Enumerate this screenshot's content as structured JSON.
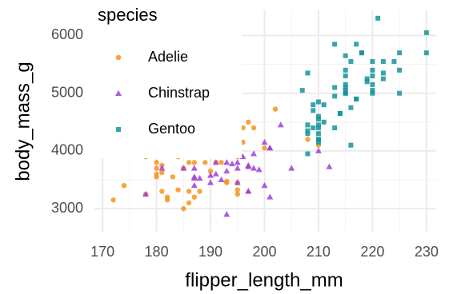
{
  "chart_data": {
    "type": "scatter",
    "xlabel": "flipper_length_mm",
    "ylabel": "body_mass_g",
    "legend_title": "species",
    "xlim": [
      168.5,
      231.8
    ],
    "ylim": [
      2600,
      6450
    ],
    "xticks": [
      170,
      180,
      190,
      200,
      210,
      220,
      230
    ],
    "yticks": [
      3000,
      4000,
      5000,
      6000
    ],
    "grid": true,
    "legend": "upper left",
    "series": [
      {
        "name": "Adelie",
        "color": "#f7931e",
        "shape": "circle",
        "x": [
          181,
          186,
          195,
          193,
          190,
          181,
          195,
          193,
          190,
          186,
          180,
          182,
          191,
          198,
          185,
          195,
          197,
          184,
          194,
          174,
          180,
          189,
          185,
          180,
          187,
          183,
          187,
          172,
          180,
          178,
          178,
          188,
          184,
          195,
          196,
          190,
          180,
          181,
          184,
          182,
          195,
          186,
          196,
          185,
          190,
          208,
          210,
          192,
          200,
          202
        ],
        "values": [
          3750,
          3800,
          3250,
          3450,
          3650,
          3625,
          4675,
          3475,
          4250,
          3300,
          3700,
          3200,
          3800,
          4400,
          3700,
          3450,
          4500,
          3325,
          4200,
          3400,
          3600,
          3800,
          3950,
          3800,
          3800,
          3550,
          3200,
          3150,
          3950,
          3250,
          3900,
          3300,
          3900,
          3325,
          4150,
          3950,
          3550,
          3300,
          4650,
          3150,
          3900,
          3100,
          4400,
          3000,
          4600,
          4200,
          4100,
          3800,
          4050,
          4725
        ]
      },
      {
        "name": "Chinstrap",
        "color": "#a13fd6",
        "shape": "triangle",
        "x": [
          192,
          196,
          193,
          188,
          197,
          198,
          178,
          197,
          195,
          198,
          193,
          194,
          185,
          201,
          190,
          201,
          197,
          181,
          190,
          195,
          191,
          187,
          193,
          195,
          197,
          200,
          200,
          191,
          205,
          187,
          201,
          187,
          203,
          195,
          199,
          195,
          210,
          192,
          212,
          187
        ],
        "values": [
          3500,
          3900,
          3650,
          3525,
          3725,
          3950,
          3250,
          3750,
          4150,
          3700,
          3800,
          3775,
          3700,
          4050,
          3575,
          4050,
          3300,
          3700,
          3450,
          4400,
          3600,
          3400,
          2900,
          3800,
          3300,
          4150,
          3400,
          3800,
          3700,
          3550,
          3200,
          3700,
          4450,
          3700,
          3675,
          3450,
          4000,
          4300,
          3725,
          3525
        ]
      },
      {
        "name": "Gentoo",
        "color": "#16939a",
        "shape": "square",
        "x": [
          211,
          230,
          210,
          218,
          215,
          210,
          211,
          219,
          209,
          215,
          214,
          216,
          214,
          213,
          210,
          217,
          210,
          221,
          209,
          222,
          218,
          215,
          213,
          215,
          215,
          215,
          216,
          215,
          210,
          220,
          222,
          209,
          207,
          230,
          220,
          220,
          213,
          219,
          208,
          208,
          208,
          225,
          210,
          216,
          222,
          217,
          210,
          225,
          213,
          215,
          210,
          220,
          210,
          225,
          217,
          220,
          208,
          220,
          208,
          224
        ],
        "values": [
          4500,
          5700,
          4450,
          5700,
          5400,
          4550,
          4800,
          5200,
          4400,
          5150,
          4650,
          5550,
          4650,
          5850,
          4200,
          5850,
          4150,
          6300,
          4800,
          5350,
          5700,
          5000,
          4400,
          5050,
          5000,
          5100,
          4100,
          5650,
          4600,
          5550,
          5250,
          4700,
          5050,
          6050,
          5150,
          5400,
          4950,
          5250,
          4350,
          5350,
          3950,
          5700,
          4300,
          4750,
          5550,
          4900,
          4200,
          5400,
          5100,
          5300,
          4850,
          5300,
          4400,
          5000,
          4900,
          5050,
          4300,
          5000,
          4450,
          5550
        ]
      }
    ]
  }
}
